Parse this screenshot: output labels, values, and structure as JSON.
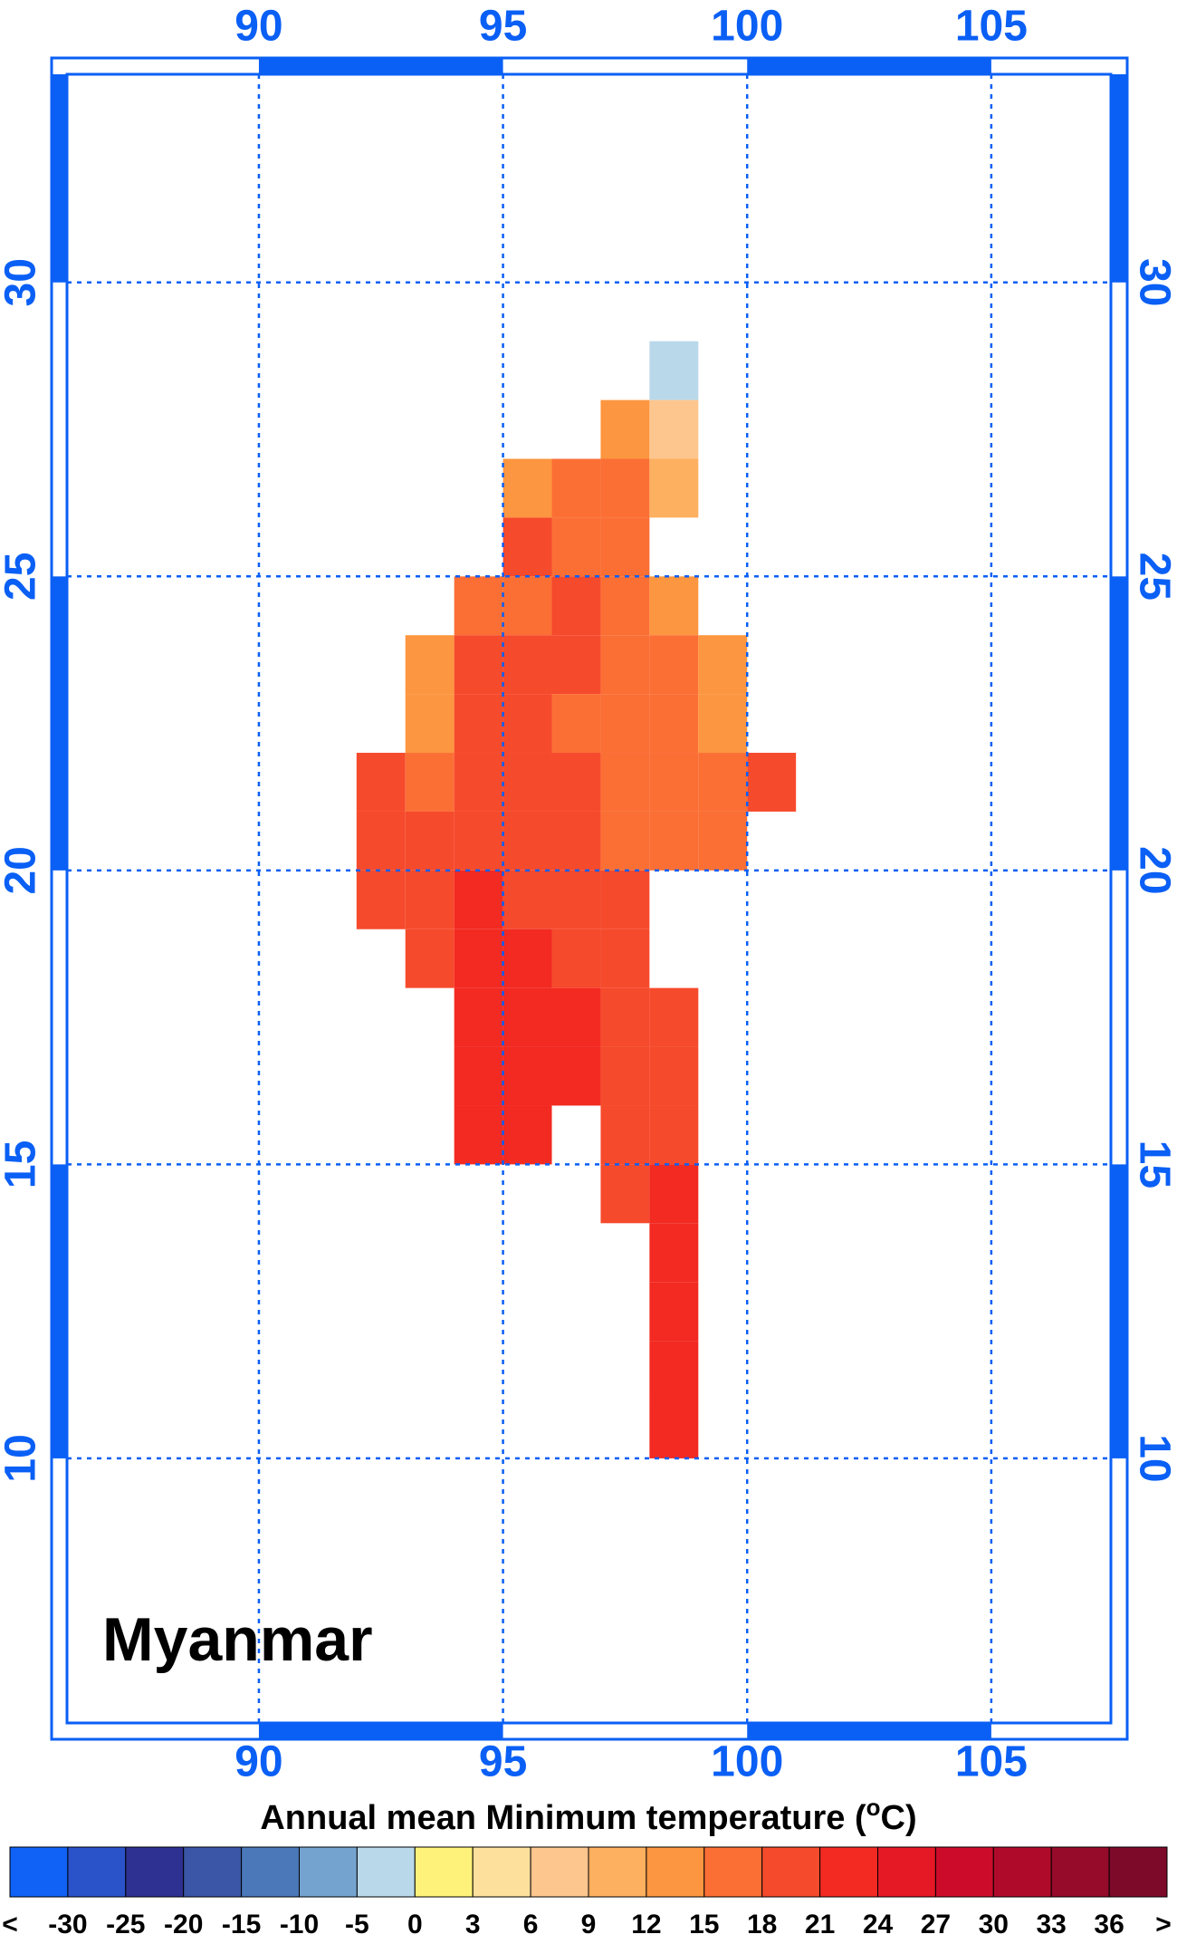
{
  "map": {
    "title": "Myanmar",
    "lonlim": [
      86.07,
      107.45
    ],
    "latlim": [
      5.5,
      33.54
    ],
    "lonticks": [
      90,
      95,
      100,
      105
    ],
    "latticks": [
      10,
      15,
      20,
      25,
      30
    ],
    "grid": true,
    "field": {
      "lons": [
        92.5,
        93.5,
        94.5,
        95.5,
        96.5,
        97.5,
        98.5,
        99.5,
        100.5
      ],
      "lats": [
        28.5,
        27.5,
        26.5,
        25.5,
        24.5,
        23.5,
        22.5,
        21.5,
        20.5,
        19.5,
        18.5,
        17.5,
        16.5,
        15.5,
        14.5,
        13.5,
        12.5,
        11.5,
        10.5
      ],
      "values": [
        [
          null,
          null,
          null,
          null,
          null,
          null,
          -2,
          null,
          null
        ],
        [
          null,
          null,
          null,
          null,
          null,
          13,
          6,
          null,
          null
        ],
        [
          null,
          null,
          null,
          14,
          16,
          15,
          9,
          null,
          null
        ],
        [
          null,
          null,
          null,
          18,
          17,
          16,
          null,
          null,
          null
        ],
        [
          null,
          null,
          17,
          16,
          18,
          15,
          14,
          null,
          null
        ],
        [
          null,
          14,
          19,
          18,
          19,
          15,
          15,
          13,
          null
        ],
        [
          null,
          13,
          19,
          19,
          17,
          15,
          15,
          14,
          null
        ],
        [
          19,
          16,
          19,
          20,
          18,
          16,
          16,
          16,
          18
        ],
        [
          19,
          19,
          20,
          20,
          19,
          16,
          17,
          17,
          null
        ],
        [
          19,
          20,
          21,
          20,
          19,
          18,
          null,
          null,
          null
        ],
        [
          null,
          20,
          21,
          21,
          20,
          19,
          null,
          null,
          null
        ],
        [
          null,
          null,
          21,
          21,
          21,
          20,
          19,
          null,
          null
        ],
        [
          null,
          null,
          21,
          21,
          21,
          20,
          20,
          null,
          null
        ],
        [
          null,
          null,
          21,
          21,
          null,
          20,
          20,
          null,
          null
        ],
        [
          null,
          null,
          null,
          null,
          null,
          20,
          21,
          null,
          null
        ],
        [
          null,
          null,
          null,
          null,
          null,
          null,
          21,
          null,
          null
        ],
        [
          null,
          null,
          null,
          null,
          null,
          null,
          21,
          null,
          null
        ],
        [
          null,
          null,
          null,
          null,
          null,
          null,
          21,
          null,
          null
        ],
        [
          null,
          null,
          null,
          null,
          null,
          null,
          21,
          null,
          null
        ]
      ]
    }
  },
  "colorbar": {
    "title": {
      "text": "Annual mean Minimum temperature (",
      "sup": "o",
      "end": "C)"
    },
    "levels": [
      -30,
      -25,
      -20,
      -15,
      -10,
      -5,
      0,
      3,
      6,
      9,
      12,
      15,
      18,
      21,
      24,
      27,
      30,
      33,
      36
    ],
    "below_label": "<",
    "above_label": ">",
    "colors": [
      "#0f62f5",
      "#2a52c9",
      "#2e3192",
      "#3b56a6",
      "#4a78b8",
      "#74a3cf",
      "#b9d9eb",
      "#fef27a",
      "#fde09c",
      "#fdc68e",
      "#fdb060",
      "#fd9640",
      "#fb6f35",
      "#f64a2c",
      "#f22a22",
      "#e51825",
      "#cc0b2a",
      "#b00a2a",
      "#960a2a",
      "#7d0a28"
    ]
  }
}
